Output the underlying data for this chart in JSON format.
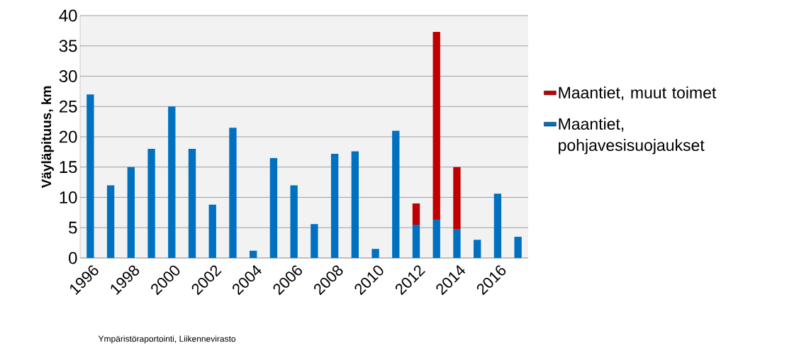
{
  "chart_data": {
    "type": "bar",
    "ylabel": "Väyläpituus, km",
    "annotations": [
      "Ympäristöraportointi, Liikennevirasto"
    ],
    "categories": [
      "1996",
      null,
      "1998",
      null,
      "2000",
      null,
      "2002",
      null,
      "2004",
      null,
      "2006",
      null,
      "2008",
      null,
      "2010",
      null,
      "2012",
      null,
      "2014",
      null,
      "2016",
      null
    ],
    "series": [
      {
        "name": "Maantiet, pohjavesisuojaukset",
        "color": "#0070c0",
        "values": [
          27,
          12,
          15,
          18,
          25,
          18,
          8.8,
          21.5,
          1.2,
          16.5,
          12,
          5.6,
          17.2,
          17.6,
          1.5,
          21,
          5.5,
          6.3,
          4.7,
          3,
          10.6,
          3.5
        ]
      },
      {
        "name": "Maantiet, muut toimet",
        "color": "#c00000",
        "values": [
          null,
          null,
          null,
          null,
          null,
          null,
          null,
          null,
          null,
          null,
          null,
          null,
          null,
          null,
          null,
          null,
          3.5,
          31,
          10.3,
          null,
          null,
          null
        ]
      }
    ],
    "stacked": true,
    "ylim": [
      0,
      40
    ],
    "yticks": [
      0,
      5,
      10,
      15,
      20,
      25,
      30,
      35,
      40
    ],
    "grid": "y",
    "legend": "right"
  }
}
